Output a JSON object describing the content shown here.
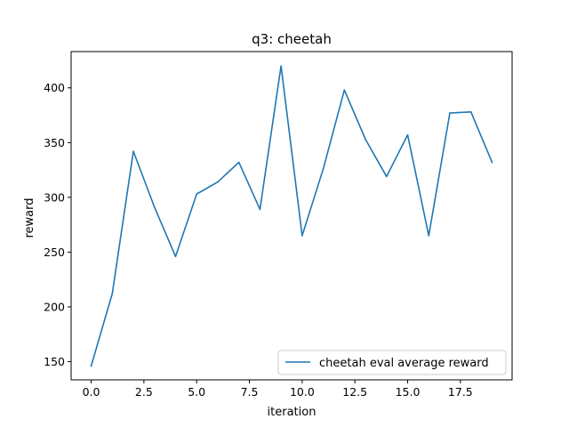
{
  "chart_data": {
    "type": "line",
    "title": "q3: cheetah",
    "xlabel": "iteration",
    "ylabel": "reward",
    "xlim": [
      -0.95,
      19.95
    ],
    "ylim": [
      133.3,
      433.1
    ],
    "xticks": [
      0.0,
      2.5,
      5.0,
      7.5,
      10.0,
      12.5,
      15.0,
      17.5
    ],
    "xtick_labels": [
      "0.0",
      "2.5",
      "5.0",
      "7.5",
      "10.0",
      "12.5",
      "15.0",
      "17.5"
    ],
    "yticks": [
      150,
      200,
      250,
      300,
      350,
      400
    ],
    "ytick_labels": [
      "150",
      "200",
      "250",
      "300",
      "350",
      "400"
    ],
    "grid": false,
    "legend_position": "lower-right",
    "series": [
      {
        "name": "cheetah eval average reward",
        "color": "#1f77b4",
        "x": [
          0,
          1,
          2,
          3,
          4,
          5,
          6,
          7,
          8,
          9,
          10,
          11,
          12,
          13,
          14,
          15,
          16,
          17,
          18,
          19
        ],
        "values": [
          146,
          212,
          342,
          291,
          246,
          303,
          314,
          332,
          289,
          420,
          265,
          326,
          398,
          353,
          319,
          357,
          265,
          377,
          378,
          332
        ]
      }
    ]
  }
}
